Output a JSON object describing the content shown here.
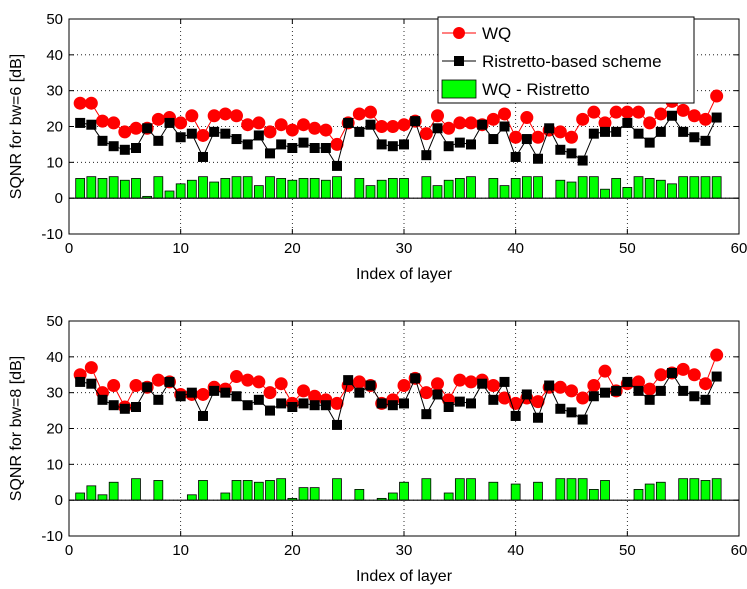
{
  "colors": {
    "wq": "#ff0000",
    "ristretto": "#000000",
    "diff": "#00ff00",
    "background": "#ffffff",
    "grid": "#000000"
  },
  "chart_data": [
    {
      "type": "line",
      "xlabel": "Index of layer",
      "ylabel": "SQNR for bw=6 [dB]",
      "xlim": [
        0,
        60
      ],
      "ylim": [
        -10,
        50
      ],
      "xticks": [
        "0",
        "10",
        "20",
        "30",
        "40",
        "50",
        "60"
      ],
      "yticks": [
        "-10",
        "0",
        "10",
        "20",
        "30",
        "40",
        "50"
      ],
      "grid": true,
      "legend_position": "top-right",
      "legend": [
        "WQ",
        "Ristretto-based scheme",
        "WQ - Ristretto"
      ],
      "x": [
        1,
        2,
        3,
        4,
        5,
        6,
        7,
        8,
        9,
        10,
        11,
        12,
        13,
        14,
        15,
        16,
        17,
        18,
        19,
        20,
        21,
        22,
        23,
        24,
        25,
        26,
        27,
        28,
        29,
        30,
        31,
        32,
        33,
        34,
        35,
        36,
        37,
        38,
        39,
        40,
        41,
        42,
        43,
        44,
        45,
        46,
        47,
        48,
        49,
        50,
        51,
        52,
        53,
        54,
        55,
        56,
        57,
        58
      ],
      "series": [
        {
          "name": "WQ",
          "style": "line-circle",
          "values": [
            26.5,
            26.5,
            21.5,
            21,
            18.5,
            19.5,
            19.5,
            22,
            22.5,
            21,
            23,
            17.5,
            23,
            23.5,
            23,
            20.5,
            21,
            18.5,
            20.5,
            19,
            20.5,
            19.5,
            19,
            15,
            21,
            23.5,
            24,
            20,
            20,
            20.5,
            21.5,
            18,
            23,
            19.5,
            21,
            21,
            20.5,
            22,
            23.5,
            17,
            22.5,
            17,
            19,
            18.5,
            17,
            22,
            24,
            21,
            24,
            24,
            24,
            21,
            23.5,
            27,
            24.5,
            23,
            22,
            28.5
          ]
        },
        {
          "name": "Ristretto-based scheme",
          "style": "line-square",
          "values": [
            21,
            20.5,
            16,
            14.5,
            13.5,
            14,
            19.5,
            16,
            21,
            17,
            18,
            11.5,
            18.5,
            18,
            16.5,
            15,
            17.5,
            12.5,
            15,
            14,
            15.5,
            14,
            14,
            9,
            21,
            18.5,
            20.5,
            15,
            14.5,
            15,
            21.5,
            12,
            19.5,
            14.5,
            15.5,
            15,
            20.5,
            16.5,
            20,
            11.5,
            16.5,
            11,
            19.5,
            13.5,
            12.5,
            10.5,
            18,
            18.5,
            18.5,
            21,
            18,
            15.5,
            18.5,
            23,
            18.5,
            17,
            16,
            22.5
          ]
        },
        {
          "name": "WQ - Ristretto",
          "style": "bar",
          "values": [
            5.5,
            6,
            5.5,
            6,
            5,
            5.5,
            0.5,
            6,
            2,
            4,
            5,
            6,
            4.5,
            5.5,
            6,
            6,
            3.5,
            6,
            5.5,
            5,
            5.5,
            5.5,
            5,
            6,
            0,
            5.5,
            3.5,
            5,
            5.5,
            5.5,
            0,
            6,
            3.5,
            5,
            5.5,
            6,
            0,
            5.5,
            3.5,
            5.5,
            6,
            6,
            0,
            5,
            4.5,
            6,
            6,
            2.5,
            5.5,
            3,
            6,
            5.5,
            5,
            4,
            6,
            6,
            6,
            6
          ]
        }
      ]
    },
    {
      "type": "line",
      "xlabel": "Index of layer",
      "ylabel": "SQNR for bw=8 [dB]",
      "xlim": [
        0,
        60
      ],
      "ylim": [
        -10,
        50
      ],
      "xticks": [
        "0",
        "10",
        "20",
        "30",
        "40",
        "50",
        "60"
      ],
      "yticks": [
        "-10",
        "0",
        "10",
        "20",
        "30",
        "40",
        "50"
      ],
      "grid": true,
      "x": [
        1,
        2,
        3,
        4,
        5,
        6,
        7,
        8,
        9,
        10,
        11,
        12,
        13,
        14,
        15,
        16,
        17,
        18,
        19,
        20,
        21,
        22,
        23,
        24,
        25,
        26,
        27,
        28,
        29,
        30,
        31,
        32,
        33,
        34,
        35,
        36,
        37,
        38,
        39,
        40,
        41,
        42,
        43,
        44,
        45,
        46,
        47,
        48,
        49,
        50,
        51,
        52,
        53,
        54,
        55,
        56,
        57,
        58
      ],
      "series": [
        {
          "name": "WQ",
          "style": "line-circle",
          "values": [
            35,
            37,
            30,
            32,
            26,
            32,
            31.5,
            33.5,
            33,
            29.5,
            29.5,
            29.5,
            31.5,
            31,
            34.5,
            33.5,
            33,
            30,
            32.5,
            27,
            30.5,
            29,
            28,
            27,
            32,
            33,
            32,
            27,
            28,
            32,
            34,
            30,
            32.5,
            28,
            33.5,
            33,
            33.5,
            32,
            28.5,
            27,
            28.5,
            27.5,
            31.5,
            31.5,
            30.5,
            28.5,
            32,
            36,
            30.5,
            32.5,
            33,
            31,
            35,
            35.5,
            36.5,
            35,
            32.5,
            40.5
          ]
        },
        {
          "name": "Ristretto-based scheme",
          "style": "line-square",
          "values": [
            33,
            32.5,
            28,
            26.5,
            25.5,
            26,
            31.5,
            28,
            33,
            29,
            30,
            23.5,
            30.5,
            30,
            29,
            26.5,
            28,
            25,
            27,
            26,
            27,
            26.5,
            26.5,
            21,
            33.5,
            30,
            32,
            27,
            26.5,
            27,
            34,
            24,
            29.5,
            26,
            27.5,
            27,
            32.5,
            28,
            33,
            23.5,
            29.5,
            23,
            32,
            25.5,
            24.5,
            22.5,
            29,
            30,
            30.5,
            33,
            30.5,
            28,
            30.5,
            35.5,
            30.5,
            29,
            28,
            34.5
          ]
        },
        {
          "name": "WQ - Ristretto",
          "style": "bar",
          "values": [
            2,
            4,
            1.5,
            5,
            0,
            6,
            0,
            5.5,
            0,
            0,
            1.5,
            5.5,
            0,
            2,
            5.5,
            5.5,
            5,
            5.5,
            6,
            0.5,
            3.5,
            3.5,
            0,
            6,
            0,
            3,
            0,
            0.5,
            2,
            5,
            0,
            6,
            0,
            2,
            6,
            6,
            0,
            5,
            0,
            4.5,
            0,
            5,
            0,
            6,
            6,
            6,
            3,
            5.5,
            0,
            0,
            3,
            4.5,
            5,
            0,
            6,
            6,
            5.5,
            6
          ]
        }
      ]
    }
  ]
}
